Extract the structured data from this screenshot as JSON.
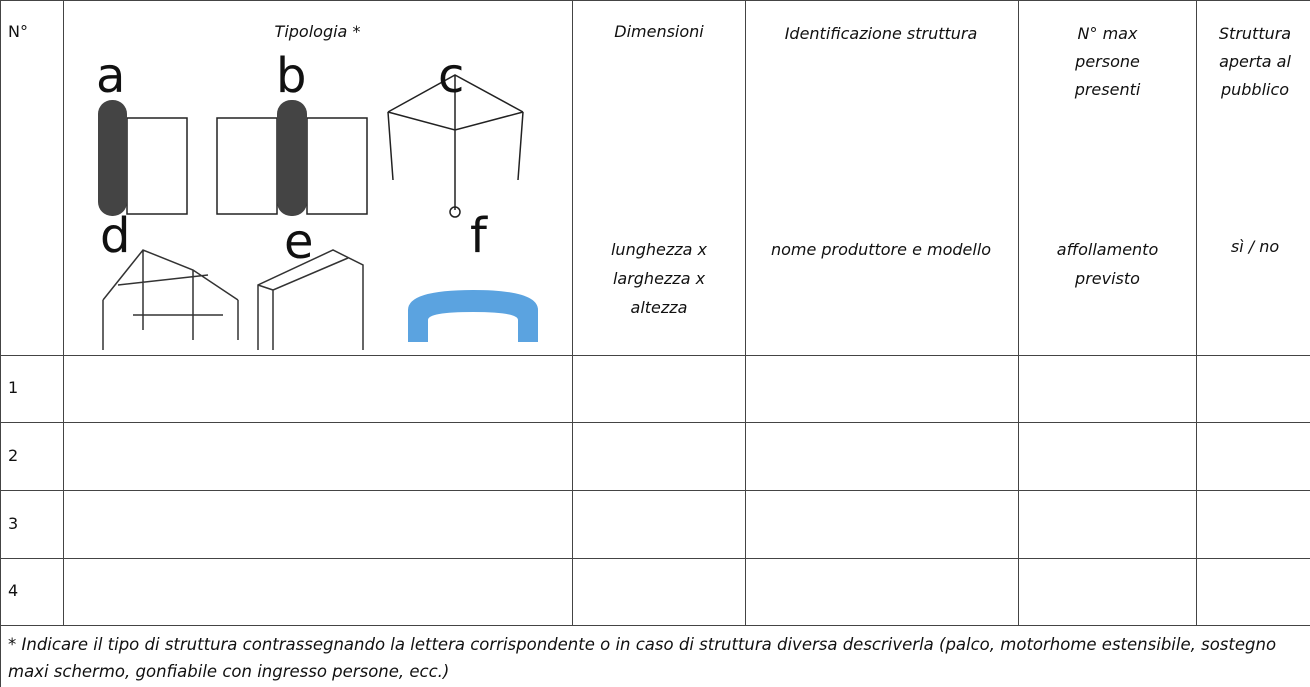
{
  "header": {
    "number": "N°",
    "typology": {
      "title": "Tipologia *",
      "letters": [
        "a",
        "b",
        "c",
        "d",
        "e",
        "f"
      ]
    },
    "dimensions": {
      "title": "Dimensioni",
      "note": "lunghezza x larghezza x altezza"
    },
    "identification": {
      "title": "Identificazione struttura",
      "note": "nome produttore e modello"
    },
    "max_people": {
      "title": "N° max persone presenti",
      "note": "affollamento previsto"
    },
    "public": {
      "title": "Struttura aperta al pubblico",
      "note": "sì / no"
    }
  },
  "table": {
    "rows": [
      "1",
      "2",
      "3",
      "4"
    ]
  },
  "footnote": "* Indicare il tipo di struttura contrassegnando la lettera corrispondente o in caso di struttura diversa descriverla (palco, motorhome estensibile, sostegno maxi schermo, gonfiabile con ingresso persone, ecc.)"
}
